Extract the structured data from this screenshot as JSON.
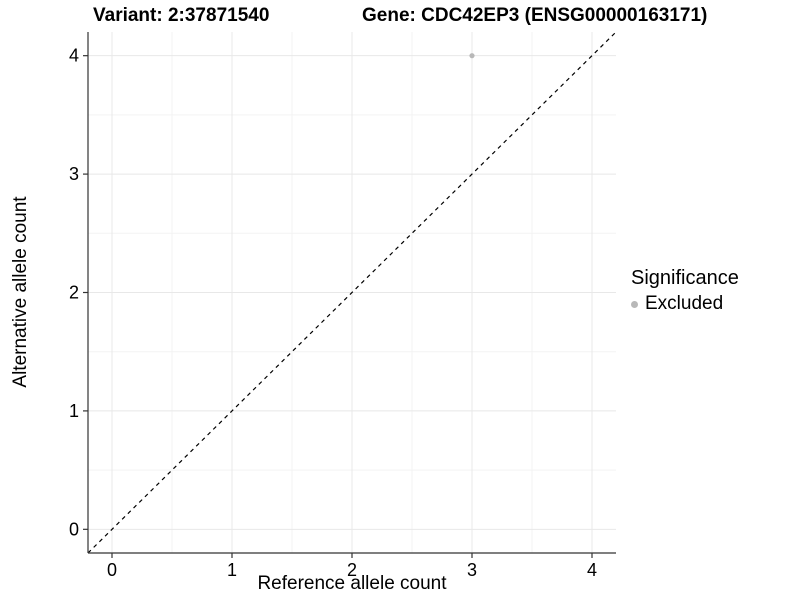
{
  "chart_data": {
    "type": "scatter",
    "title_left": "Variant: 2:37871540",
    "title_right": "Gene: CDC42EP3 (ENSG00000163171)",
    "xlabel": "Reference allele count",
    "ylabel": "Alternative allele count",
    "xlim": [
      -0.2,
      4.2
    ],
    "ylim": [
      -0.2,
      4.2
    ],
    "xticks": [
      0,
      1,
      2,
      3,
      4
    ],
    "yticks": [
      0,
      1,
      2,
      3,
      4
    ],
    "xminor": [
      0.5,
      1.5,
      2.5,
      3.5
    ],
    "yminor": [
      0.5,
      1.5,
      2.5,
      3.5
    ],
    "grid": true,
    "points": [
      {
        "x": 3,
        "y": 4,
        "series": "Excluded"
      }
    ],
    "reference_line": {
      "style": "dashed",
      "from": [
        -0.2,
        -0.2
      ],
      "to": [
        4.2,
        4.2
      ]
    },
    "legend": {
      "title": "Significance",
      "position": "right",
      "entries": [
        {
          "label": "Excluded",
          "color": "#b8b8b8"
        }
      ]
    },
    "colors": {
      "major_grid": "#e8e8e8",
      "minor_grid": "#f3f3f3",
      "axis_line": "#333333",
      "tick_text": "#000000",
      "point": "#b8b8b8",
      "reference_line": "#000000",
      "background": "#ffffff"
    }
  }
}
